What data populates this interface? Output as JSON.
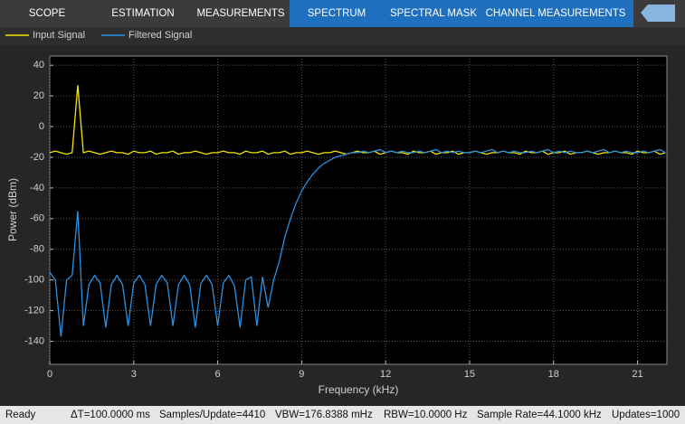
{
  "toolstrip": {
    "tabs": [
      "SCOPE",
      "ESTIMATION",
      "MEASUREMENTS",
      "SPECTRUM",
      "SPECTRAL MASK",
      "CHANNEL MEASUREMENTS"
    ]
  },
  "status_bar": {
    "items": [
      "Ready",
      "ΔT=100.0000 ms",
      "Samples/Update=4410",
      "VBW=176.8388 mHz",
      "RBW=10.0000 Hz",
      "Sample Rate=44.1000 kHz",
      "Updates=1000"
    ]
  },
  "chart_data": {
    "type": "line",
    "x_label": "Frequency (kHz)",
    "y_label": "Power (dBm)",
    "xlim": [
      0,
      22.05
    ],
    "xticks": [
      0,
      3,
      6,
      9,
      12,
      15,
      18,
      21
    ],
    "ylim": [
      -155,
      46
    ],
    "yticks": [
      -140,
      -120,
      -100,
      -80,
      -60,
      -40,
      -20,
      0,
      20,
      40
    ],
    "grid": true,
    "x": [
      0,
      0.2,
      0.4,
      0.6,
      0.8,
      1,
      1.2,
      1.4,
      1.6,
      1.8,
      2,
      2.2,
      2.4,
      2.6,
      2.8,
      3,
      3.2,
      3.4,
      3.6,
      3.8,
      4,
      4.2,
      4.4,
      4.6,
      4.8,
      5,
      5.2,
      5.4,
      5.6,
      5.8,
      6,
      6.2,
      6.4,
      6.6,
      6.8,
      7,
      7.2,
      7.4,
      7.6,
      7.8,
      8,
      8.2,
      8.4,
      8.6,
      8.8,
      9,
      9.2,
      9.4,
      9.6,
      9.8,
      10,
      10.2,
      10.4,
      10.6,
      10.8,
      11,
      11.2,
      11.4,
      11.6,
      11.8,
      12,
      12.2,
      12.4,
      12.6,
      12.8,
      13,
      13.2,
      13.4,
      13.6,
      13.8,
      14,
      14.2,
      14.4,
      14.6,
      14.8,
      15,
      15.2,
      15.4,
      15.6,
      15.8,
      16,
      16.2,
      16.4,
      16.6,
      16.8,
      17,
      17.2,
      17.4,
      17.6,
      17.8,
      18,
      18.2,
      18.4,
      18.6,
      18.8,
      19,
      19.2,
      19.4,
      19.6,
      19.8,
      20,
      20.2,
      20.4,
      20.6,
      20.8,
      21,
      21.2,
      21.4,
      21.6,
      21.8,
      22
    ],
    "series": [
      {
        "name": "Input Signal",
        "color": "#f2e600",
        "values": [
          -17,
          -16,
          -17,
          -18,
          -17,
          27,
          -17,
          -16,
          -17,
          -18,
          -17,
          -16,
          -17,
          -17,
          -18,
          -16,
          -17,
          -17,
          -16,
          -18,
          -17,
          -17,
          -16,
          -18,
          -17,
          -17,
          -16,
          -17,
          -18,
          -17,
          -17,
          -16,
          -17,
          -17,
          -18,
          -16,
          -17,
          -17,
          -16,
          -18,
          -17,
          -17,
          -16,
          -18,
          -17,
          -17,
          -16,
          -17,
          -18,
          -17,
          -17,
          -16,
          -17,
          -18,
          -17,
          -16,
          -17,
          -17,
          -16,
          -18,
          -17,
          -16,
          -17,
          -17,
          -18,
          -16,
          -17,
          -17,
          -16,
          -18,
          -17,
          -17,
          -16,
          -18,
          -17,
          -17,
          -16,
          -17,
          -18,
          -17,
          -17,
          -16,
          -17,
          -17,
          -18,
          -16,
          -17,
          -17,
          -16,
          -18,
          -17,
          -17,
          -16,
          -18,
          -17,
          -17,
          -16,
          -17,
          -18,
          -17,
          -17,
          -16,
          -17,
          -17,
          -18,
          -16,
          -17,
          -17,
          -16,
          -18,
          -17
        ]
      },
      {
        "name": "Filtered Signal",
        "color": "#2b90e0",
        "values": [
          -95,
          -100,
          -137,
          -100,
          -97,
          -55,
          -130,
          -103,
          -97,
          -102,
          -131,
          -103,
          -97,
          -103,
          -130,
          -102,
          -97,
          -103,
          -130,
          -103,
          -97,
          -102,
          -130,
          -103,
          -97,
          -103,
          -131,
          -102,
          -97,
          -103,
          -130,
          -102,
          -97,
          -104,
          -131,
          -100,
          -98,
          -130,
          -98,
          -118,
          -100,
          -88,
          -72,
          -60,
          -50,
          -42,
          -36,
          -31,
          -27,
          -24,
          -22,
          -20,
          -19,
          -18,
          -17,
          -17,
          -16,
          -17,
          -16,
          -15,
          -17,
          -16,
          -17,
          -16,
          -17,
          -17,
          -16,
          -17,
          -16,
          -15,
          -17,
          -16,
          -17,
          -16,
          -17,
          -17,
          -16,
          -17,
          -16,
          -15,
          -17,
          -16,
          -17,
          -16,
          -17,
          -17,
          -16,
          -17,
          -16,
          -15,
          -17,
          -16,
          -17,
          -16,
          -17,
          -17,
          -16,
          -17,
          -16,
          -15,
          -17,
          -16,
          -17,
          -16,
          -17,
          -17,
          -16,
          -17,
          -16,
          -15,
          -17
        ]
      }
    ]
  }
}
